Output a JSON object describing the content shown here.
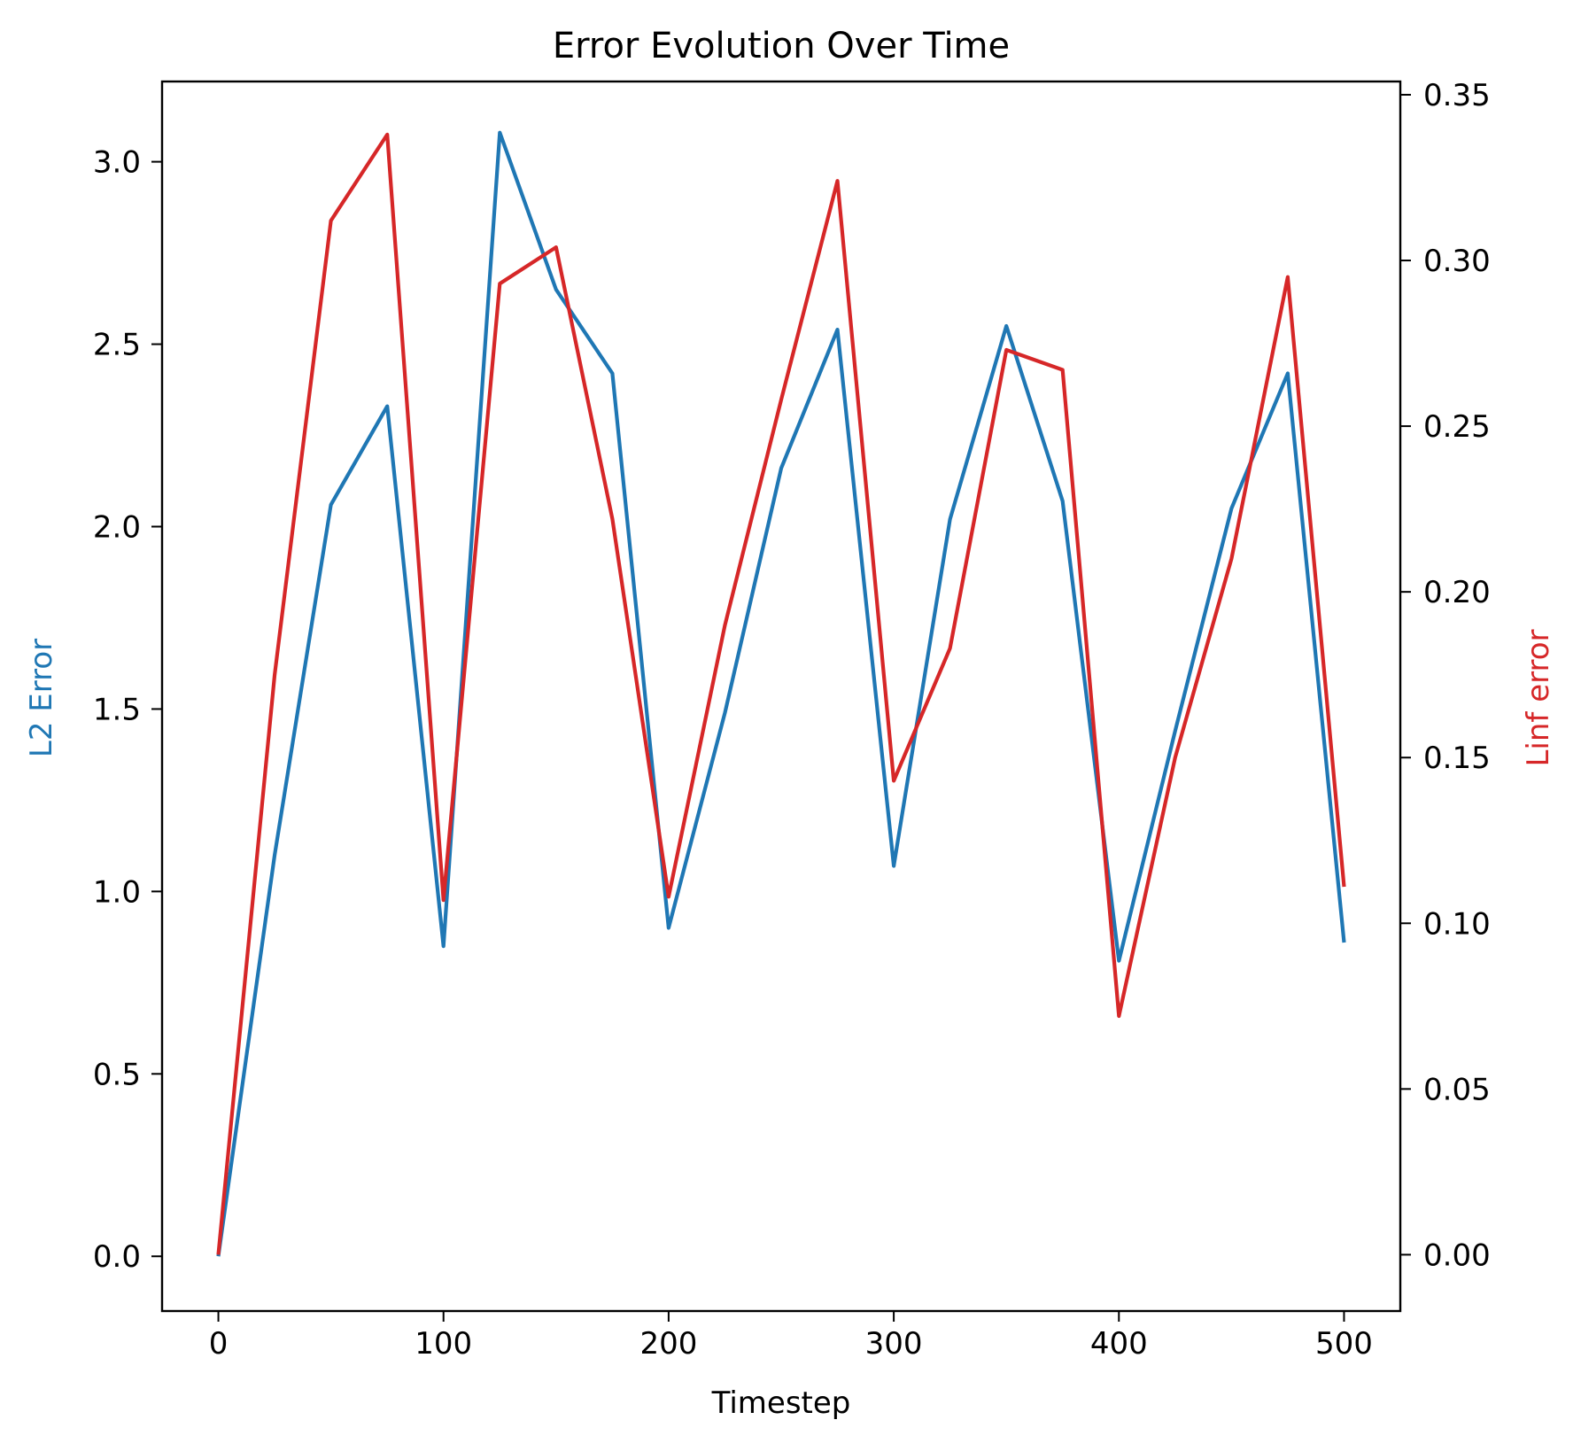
{
  "chart_data": {
    "type": "line",
    "title": "Error Evolution Over Time",
    "xlabel": "Timestep",
    "ylabel_left": "L2 Error",
    "ylabel_right": "Linf error",
    "xlim": [
      -25,
      525
    ],
    "ylim_left": [
      -0.15,
      3.22
    ],
    "ylim_right": [
      -0.017,
      0.354
    ],
    "xticks": [
      0,
      100,
      200,
      300,
      400,
      500
    ],
    "xtick_labels": [
      "0",
      "100",
      "200",
      "300",
      "400",
      "500"
    ],
    "yticks_left": [
      0.0,
      0.5,
      1.0,
      1.5,
      2.0,
      2.5,
      3.0
    ],
    "ytick_labels_left": [
      "0.0",
      "0.5",
      "1.0",
      "1.5",
      "2.0",
      "2.5",
      "3.0"
    ],
    "yticks_right": [
      0.0,
      0.05,
      0.1,
      0.15,
      0.2,
      0.25,
      0.3,
      0.35
    ],
    "ytick_labels_right": [
      "0.00",
      "0.05",
      "0.10",
      "0.15",
      "0.20",
      "0.25",
      "0.30",
      "0.35"
    ],
    "grid": false,
    "x": [
      0,
      25,
      50,
      75,
      100,
      125,
      150,
      175,
      200,
      225,
      250,
      275,
      300,
      325,
      350,
      375,
      400,
      425,
      450,
      475,
      500
    ],
    "series": [
      {
        "axis": "left",
        "color": "#1f77b4",
        "values": [
          0.0,
          1.1,
          2.06,
          2.33,
          0.85,
          3.08,
          2.65,
          2.42,
          0.9,
          1.49,
          2.16,
          2.54,
          1.07,
          2.02,
          2.55,
          2.07,
          0.81,
          1.44,
          2.05,
          2.42,
          0.86
        ]
      },
      {
        "axis": "right",
        "color": "#d62728",
        "values": [
          0.0,
          0.175,
          0.312,
          0.338,
          0.107,
          0.293,
          0.304,
          0.222,
          0.108,
          0.19,
          0.258,
          0.324,
          0.143,
          0.183,
          0.273,
          0.267,
          0.072,
          0.15,
          0.21,
          0.295,
          0.111
        ]
      }
    ]
  }
}
